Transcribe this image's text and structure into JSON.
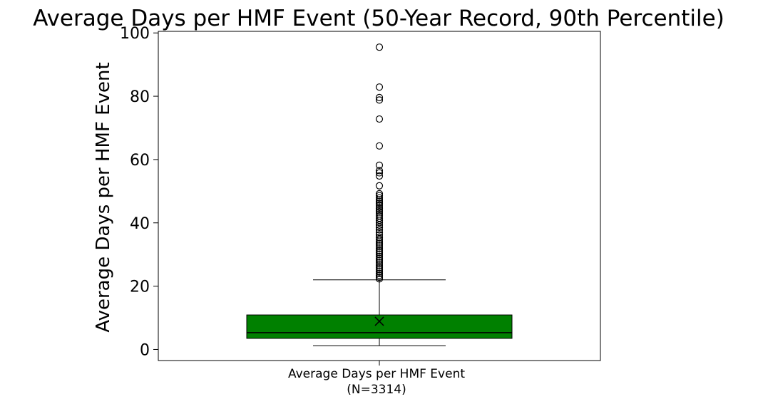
{
  "chart_data": {
    "type": "box",
    "title": "Average Days per HMF Event (50-Year Record, 90th Percentile)",
    "ylabel": "Average Days per HMF Event",
    "categories": [
      "Average Days per HMF Event\n(N=3314)"
    ],
    "ylim": [
      -3.5,
      100.5
    ],
    "yticks": [
      0,
      20,
      40,
      60,
      80,
      100
    ],
    "grid": false,
    "box": {
      "whisker_low": 1.2,
      "q1": 3.5,
      "median": 5.3,
      "q3": 10.9,
      "whisker_high": 22.0,
      "mean": 8.9,
      "color": "#008000"
    },
    "outliers": [
      95.5,
      82.9,
      79.6,
      78.8,
      72.8,
      64.3,
      58.2,
      56.5,
      55.8,
      54.8,
      51.7,
      49.2,
      48.6,
      47.9,
      47.3,
      46.8,
      46.2,
      45.6,
      45.0,
      44.5,
      43.9,
      43.4,
      42.8,
      42.2,
      41.5,
      40.8,
      40.1,
      39.3,
      38.6,
      37.8,
      37.0,
      36.2,
      35.4,
      34.8,
      34.2,
      33.6,
      33.0,
      32.4,
      31.8,
      31.2,
      30.6,
      30.0,
      29.4,
      28.8,
      28.2,
      27.6,
      27.0,
      26.4,
      25.8,
      25.2,
      24.6,
      24.0,
      23.4,
      22.8,
      22.3
    ]
  }
}
